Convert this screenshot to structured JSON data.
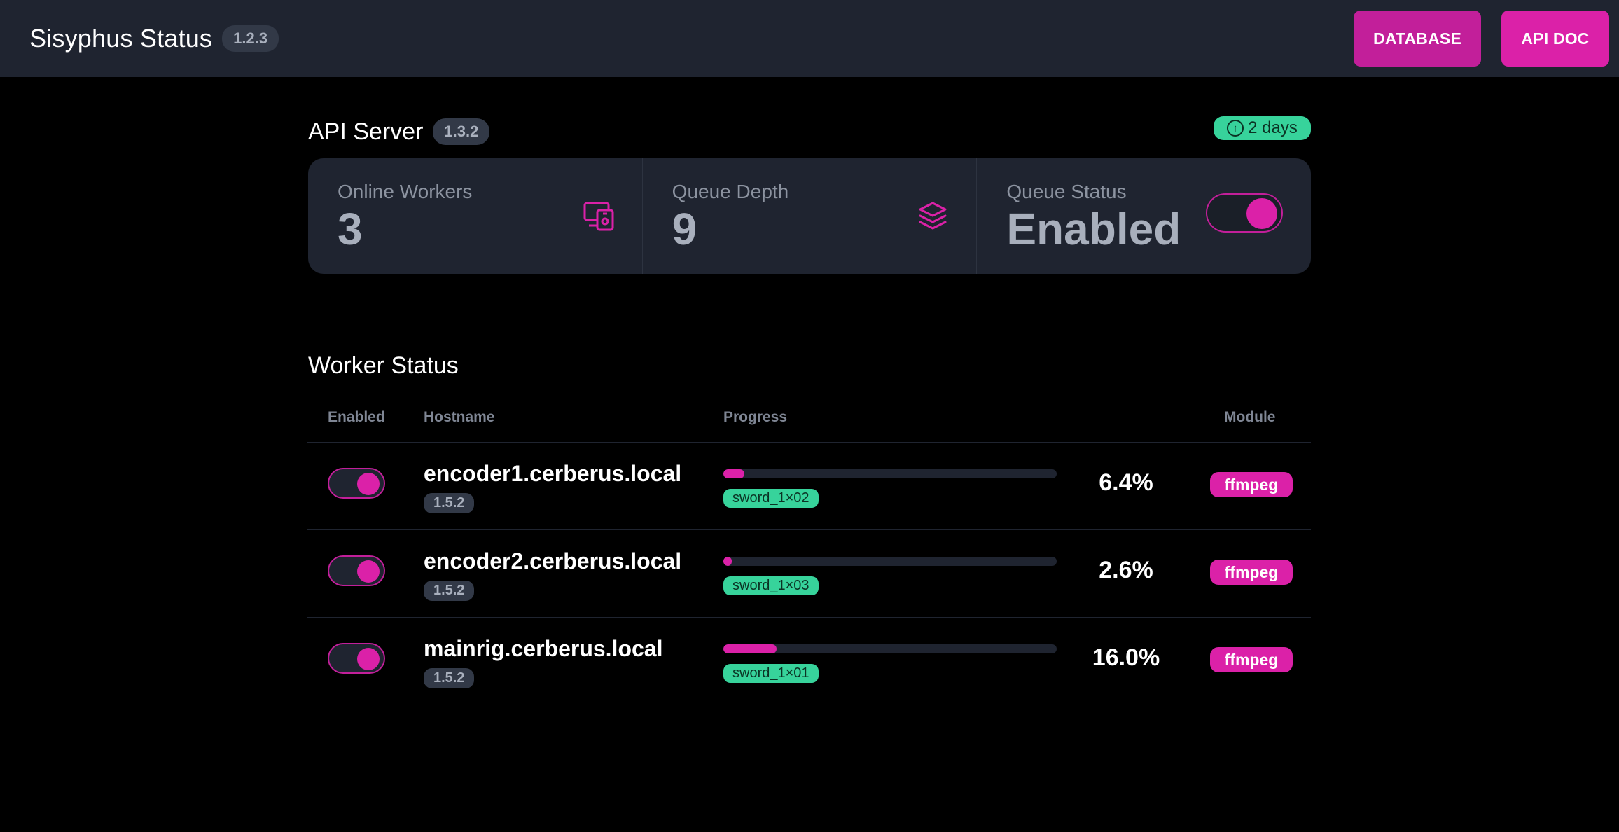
{
  "navbar": {
    "title": "Sisyphus Status",
    "version": "1.2.3",
    "buttons": {
      "database": "DATABASE",
      "api_doc": "API DOC"
    }
  },
  "api_server": {
    "title": "API Server",
    "version": "1.3.2",
    "uptime": "2 days",
    "stats": {
      "online_workers": {
        "label": "Online Workers",
        "value": "3",
        "icon": "devices-icon"
      },
      "queue_depth": {
        "label": "Queue Depth",
        "value": "9",
        "icon": "layers-icon"
      },
      "queue_status": {
        "label": "Queue Status",
        "value": "Enabled",
        "enabled": true
      }
    }
  },
  "workers": {
    "title": "Worker Status",
    "columns": [
      "Enabled",
      "Hostname",
      "Progress",
      "Module"
    ],
    "rows": [
      {
        "enabled": true,
        "hostname": "encoder1.cerberus.local",
        "version": "1.5.2",
        "progress": 6.4,
        "progress_text": "6.4%",
        "file": "sword_1×02",
        "module": "ffmpeg"
      },
      {
        "enabled": true,
        "hostname": "encoder2.cerberus.local",
        "version": "1.5.2",
        "progress": 2.6,
        "progress_text": "2.6%",
        "file": "sword_1×03",
        "module": "ffmpeg"
      },
      {
        "enabled": true,
        "hostname": "mainrig.cerberus.local",
        "version": "1.5.2",
        "progress": 16.0,
        "progress_text": "16.0%",
        "file": "sword_1×01",
        "module": "ffmpeg"
      }
    ]
  },
  "colors": {
    "accent": "#db21a8",
    "success": "#37d39b",
    "panel": "#1f2430"
  }
}
